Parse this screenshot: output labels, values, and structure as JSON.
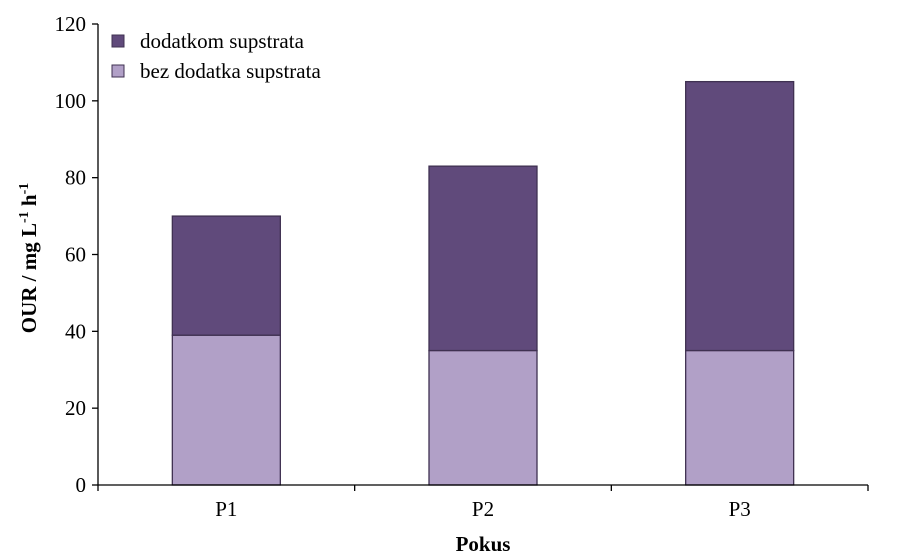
{
  "chart_data": {
    "type": "bar",
    "stacked": true,
    "categories": [
      "P1",
      "P2",
      "P3"
    ],
    "series": [
      {
        "name": "bez dodatka supstrata",
        "values": [
          39,
          35,
          35
        ],
        "color": "#b1a0c7"
      },
      {
        "name": "dodatkom supstrata",
        "values": [
          31,
          48,
          70
        ],
        "color": "#604a7b"
      }
    ],
    "totals": [
      70,
      83,
      105
    ],
    "xlabel": "Pokus",
    "ylabel": {
      "main": "OUR / mg L",
      "sup1": "-1",
      "mid": " h",
      "sup2": "-1"
    },
    "ylim": [
      0,
      120
    ],
    "yticks": [
      0,
      20,
      40,
      60,
      80,
      100,
      120
    ],
    "grid": false,
    "legend": {
      "placement": "top-left",
      "order": [
        "dodatkom supstrata",
        "bez dodatka supstrata"
      ]
    },
    "bar_edge_color": "#3f3151"
  }
}
